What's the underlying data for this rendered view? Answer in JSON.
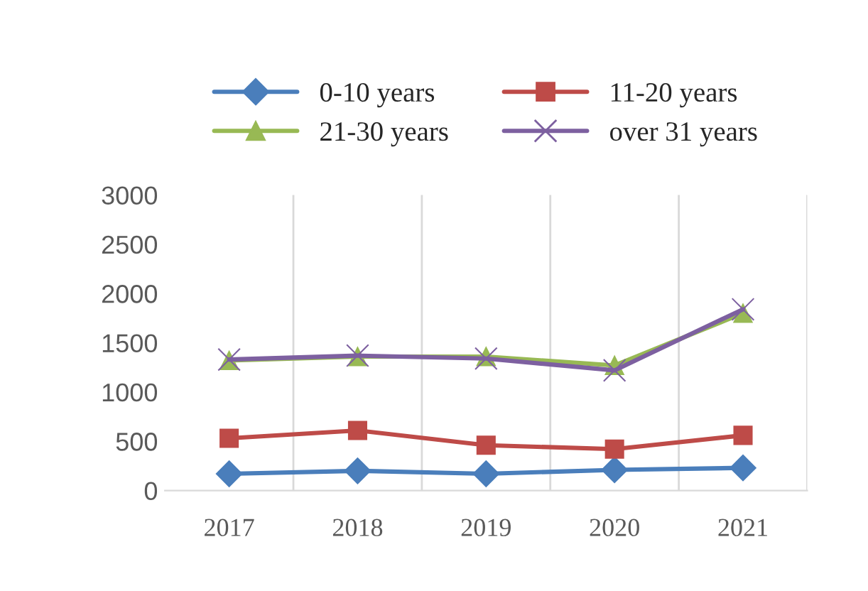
{
  "chart_data": {
    "type": "line",
    "categories": [
      "2017",
      "2018",
      "2019",
      "2020",
      "2021"
    ],
    "series": [
      {
        "name": "0-10 years",
        "color": "#4a7ebb",
        "marker": "diamond",
        "values": [
          170,
          200,
          170,
          210,
          230
        ]
      },
      {
        "name": "11-20 years",
        "color": "#be4b48",
        "marker": "square",
        "values": [
          530,
          610,
          460,
          420,
          560
        ]
      },
      {
        "name": "21-30 years",
        "color": "#98b954",
        "marker": "triangle",
        "values": [
          1320,
          1360,
          1360,
          1270,
          1800
        ]
      },
      {
        "name": "over 31 years",
        "color": "#7d60a0",
        "marker": "cross",
        "values": [
          1330,
          1370,
          1340,
          1220,
          1840
        ]
      }
    ],
    "ylim": [
      0,
      3000
    ],
    "yticks": [
      0,
      500,
      1000,
      1500,
      2000,
      2500,
      3000
    ],
    "grid": "x",
    "legend": "top"
  }
}
